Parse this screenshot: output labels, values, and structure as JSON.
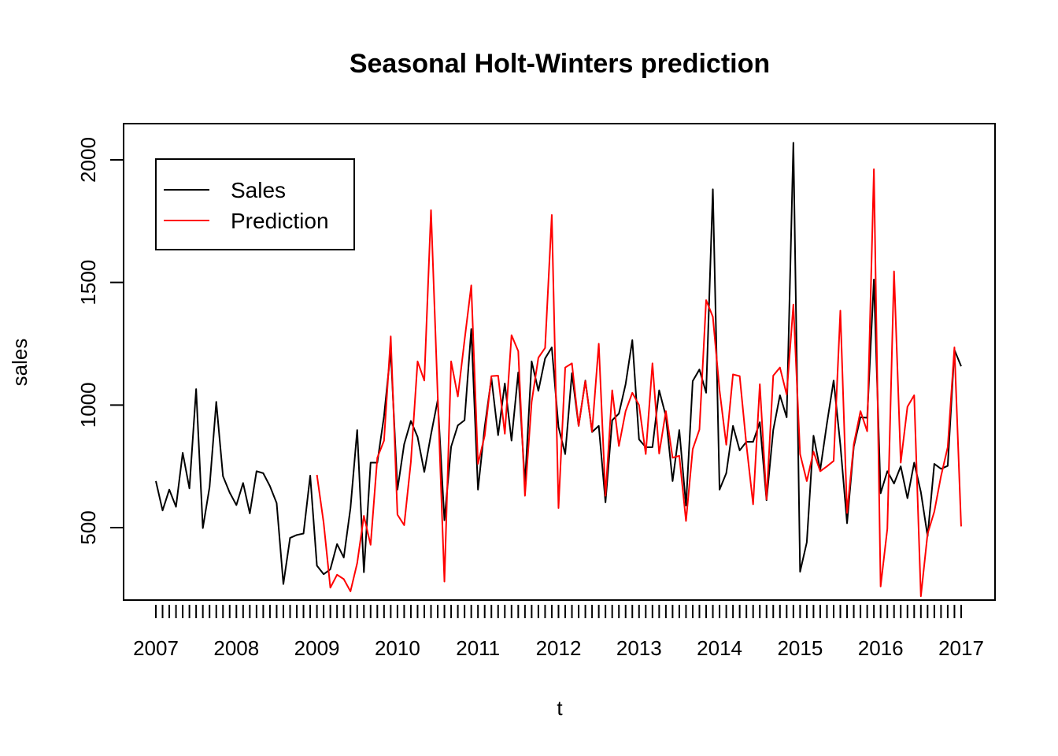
{
  "chart_data": {
    "type": "line",
    "title": "Seasonal Holt-Winters prediction",
    "xlabel": "t",
    "ylabel": "sales",
    "xlim": [
      2007,
      2017.083
    ],
    "ylim": [
      270,
      2070
    ],
    "x_ticks": [
      "2007",
      "2008",
      "2009",
      "2010",
      "2011",
      "2012",
      "2013",
      "2014",
      "2015",
      "2016",
      "2017"
    ],
    "y_ticks": [
      "500",
      "1000",
      "1500",
      "2000"
    ],
    "grid": false,
    "legend": "top-left",
    "x_start": 2007,
    "x_step": 0.08333,
    "series": [
      {
        "name": "Sales",
        "color": "#000000",
        "offset": 0,
        "values": [
          690,
          570,
          655,
          585,
          805,
          660,
          1065,
          498,
          665,
          1013,
          710,
          643,
          592,
          682,
          558,
          730,
          722,
          669,
          600,
          270,
          458,
          470,
          476,
          712,
          345,
          310,
          330,
          433,
          378,
          580,
          898,
          318,
          765,
          765,
          955,
          1222,
          655,
          840,
          935,
          870,
          727,
          880,
          1020,
          530,
          830,
          917,
          938,
          1310,
          655,
          910,
          1110,
          877,
          1088,
          855,
          1133,
          680,
          1178,
          1058,
          1190,
          1235,
          910,
          800,
          1130,
          915,
          1100,
          890,
          915,
          603,
          938,
          965,
          1085,
          1265,
          860,
          828,
          828,
          1060,
          955,
          690,
          898,
          590,
          1098,
          1145,
          1050,
          1880,
          655,
          722,
          915,
          815,
          850,
          850,
          930,
          612,
          898,
          1040,
          950,
          2070,
          320,
          440,
          875,
          735,
          925,
          1100,
          838,
          518,
          830,
          950,
          948,
          1512,
          640,
          730,
          680,
          750,
          620,
          765,
          645,
          465,
          760,
          740,
          752,
          1225,
          1158
        ]
      },
      {
        "name": "Prediction",
        "color": "#ff0000",
        "offset": 24,
        "values": [
          715,
          520,
          255,
          308,
          290,
          240,
          355,
          548,
          430,
          785,
          855,
          1280,
          553,
          510,
          768,
          1178,
          1100,
          1795,
          1038,
          280,
          1178,
          1035,
          1265,
          1488,
          760,
          875,
          1118,
          1120,
          883,
          1285,
          1220,
          630,
          1013,
          1193,
          1233,
          1775,
          580,
          1153,
          1170,
          915,
          1098,
          892,
          1250,
          630,
          1060,
          833,
          975,
          1050,
          1000,
          800,
          1170,
          802,
          975,
          785,
          793,
          527,
          820,
          900,
          1428,
          1360,
          1060,
          838,
          1125,
          1118,
          838,
          595,
          1085,
          615,
          1120,
          1153,
          1043,
          1410,
          800,
          690,
          810,
          730,
          750,
          772,
          1385,
          560,
          840,
          975,
          893,
          1962,
          260,
          495,
          1545,
          765,
          993,
          1040,
          220,
          475,
          565,
          710,
          828,
          1235,
          505
        ]
      }
    ]
  }
}
